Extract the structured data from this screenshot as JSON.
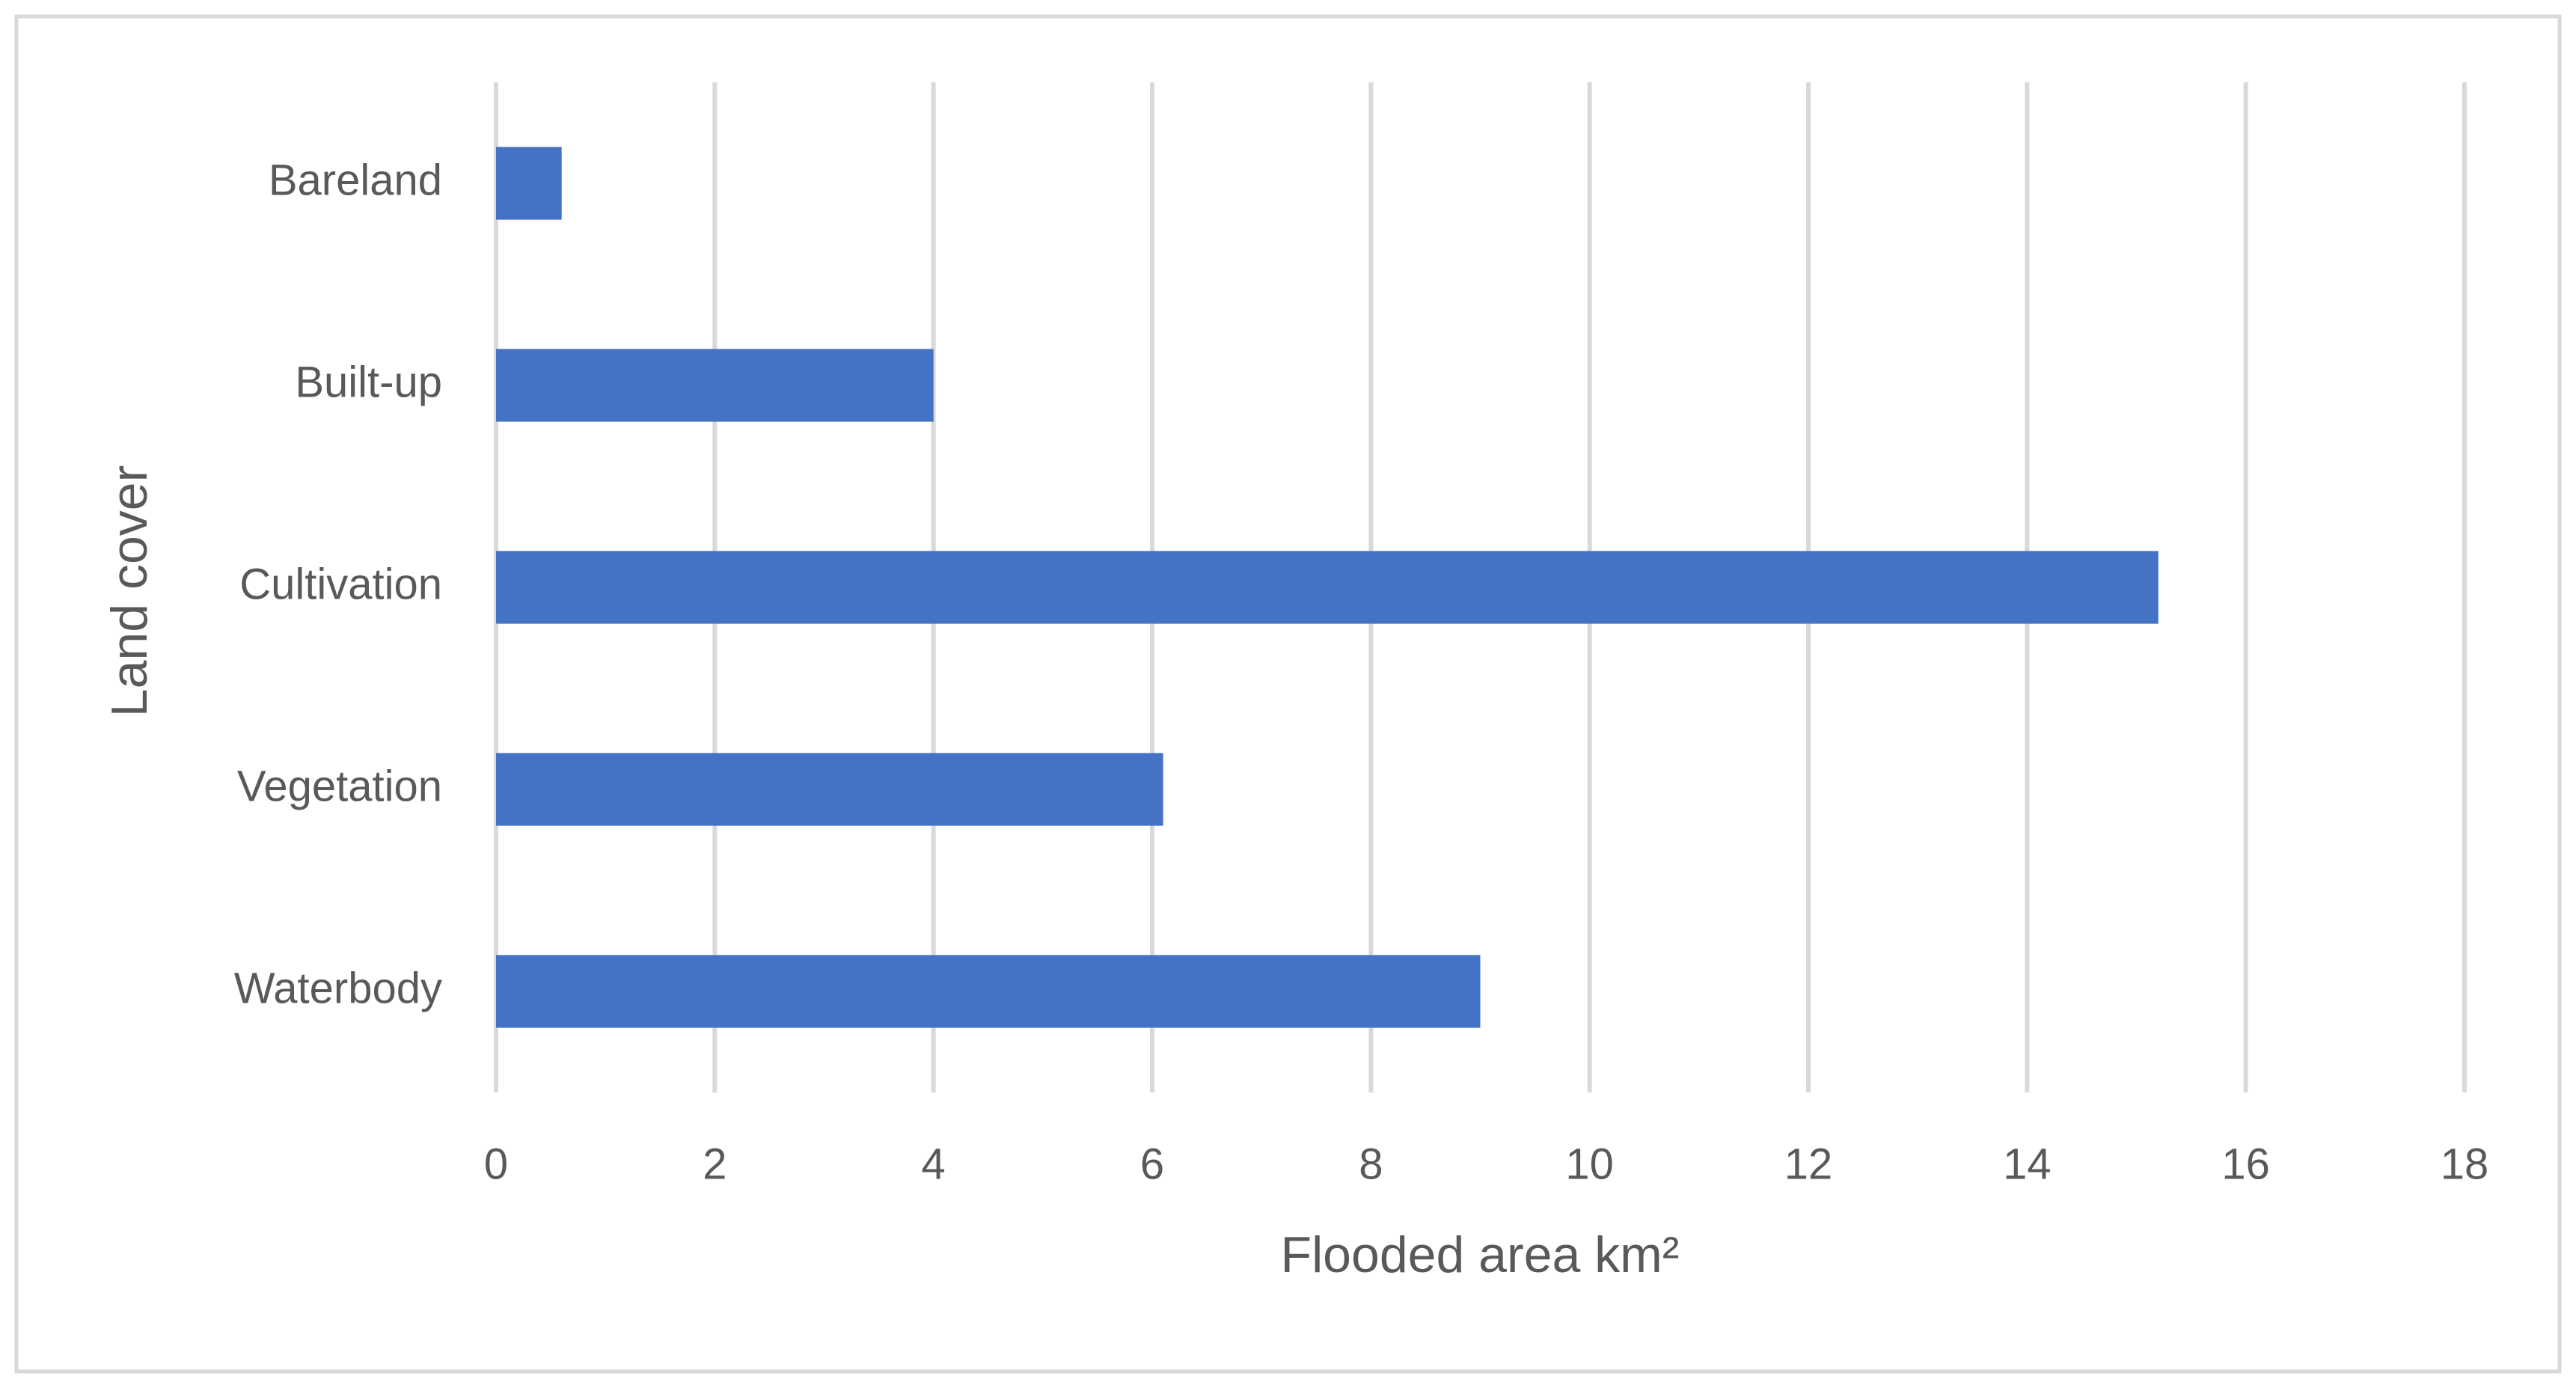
{
  "chart_data": {
    "type": "hbar",
    "x_label": "Flooded area km²",
    "y_label": "Land cover",
    "categories": [
      "Bareland",
      "Built-up",
      "Cultivation",
      "Vegetation",
      "Waterbody"
    ],
    "values": [
      0.6,
      4.0,
      15.2,
      6.1,
      9.0
    ],
    "color": "#4472c4",
    "xlim": [
      0,
      18
    ],
    "xticks": [
      0,
      2,
      4,
      6,
      8,
      10,
      12,
      14,
      16,
      18
    ],
    "grid": true
  }
}
